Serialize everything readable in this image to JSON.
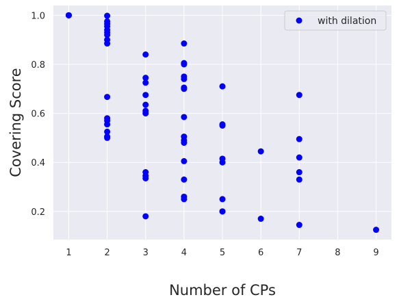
{
  "chart_data": {
    "type": "scatter",
    "title": "",
    "xlabel": "Number of CPs",
    "ylabel": "Covering Score",
    "xlim": [
      0.6,
      9.4
    ],
    "ylim": [
      0.085,
      1.04
    ],
    "xticks": [
      1,
      2,
      3,
      4,
      5,
      6,
      7,
      8,
      9
    ],
    "yticks": [
      0.2,
      0.4,
      0.6,
      0.8,
      1.0
    ],
    "xtick_labels": [
      "1",
      "2",
      "3",
      "4",
      "5",
      "6",
      "7",
      "8",
      "9"
    ],
    "ytick_labels": [
      "0.2",
      "0.4",
      "0.6",
      "0.8",
      "1.0"
    ],
    "grid": true,
    "background": "#eaeaf2",
    "marker_color": "#0000ff",
    "legend_position": "top-right",
    "series": [
      {
        "name": "with dilation",
        "points": [
          [
            1,
            1.0
          ],
          [
            1,
            1.0
          ],
          [
            1,
            1.0
          ],
          [
            2,
            0.998
          ],
          [
            2,
            0.975
          ],
          [
            2,
            0.965
          ],
          [
            2,
            0.955
          ],
          [
            2,
            0.94
          ],
          [
            2,
            0.93
          ],
          [
            2,
            0.92
          ],
          [
            2,
            0.9
          ],
          [
            2,
            0.885
          ],
          [
            2,
            0.667
          ],
          [
            2,
            0.58
          ],
          [
            2,
            0.57
          ],
          [
            2,
            0.555
          ],
          [
            2,
            0.525
          ],
          [
            2,
            0.505
          ],
          [
            2,
            0.5
          ],
          [
            3,
            0.84
          ],
          [
            3,
            0.745
          ],
          [
            3,
            0.725
          ],
          [
            3,
            0.675
          ],
          [
            3,
            0.635
          ],
          [
            3,
            0.61
          ],
          [
            3,
            0.6
          ],
          [
            3,
            0.36
          ],
          [
            3,
            0.345
          ],
          [
            3,
            0.335
          ],
          [
            3,
            0.18
          ],
          [
            4,
            0.885
          ],
          [
            4,
            0.805
          ],
          [
            4,
            0.8
          ],
          [
            4,
            0.75
          ],
          [
            4,
            0.74
          ],
          [
            4,
            0.705
          ],
          [
            4,
            0.7
          ],
          [
            4,
            0.585
          ],
          [
            4,
            0.505
          ],
          [
            4,
            0.49
          ],
          [
            4,
            0.48
          ],
          [
            4,
            0.405
          ],
          [
            4,
            0.33
          ],
          [
            4,
            0.26
          ],
          [
            4,
            0.25
          ],
          [
            5,
            0.71
          ],
          [
            5,
            0.555
          ],
          [
            5,
            0.55
          ],
          [
            5,
            0.415
          ],
          [
            5,
            0.4
          ],
          [
            5,
            0.25
          ],
          [
            5,
            0.2
          ],
          [
            5,
            0.2
          ],
          [
            6,
            0.445
          ],
          [
            6,
            0.17
          ],
          [
            7,
            0.675
          ],
          [
            7,
            0.495
          ],
          [
            7,
            0.42
          ],
          [
            7,
            0.36
          ],
          [
            7,
            0.33
          ],
          [
            7,
            0.145
          ],
          [
            9,
            0.125
          ]
        ]
      }
    ]
  }
}
